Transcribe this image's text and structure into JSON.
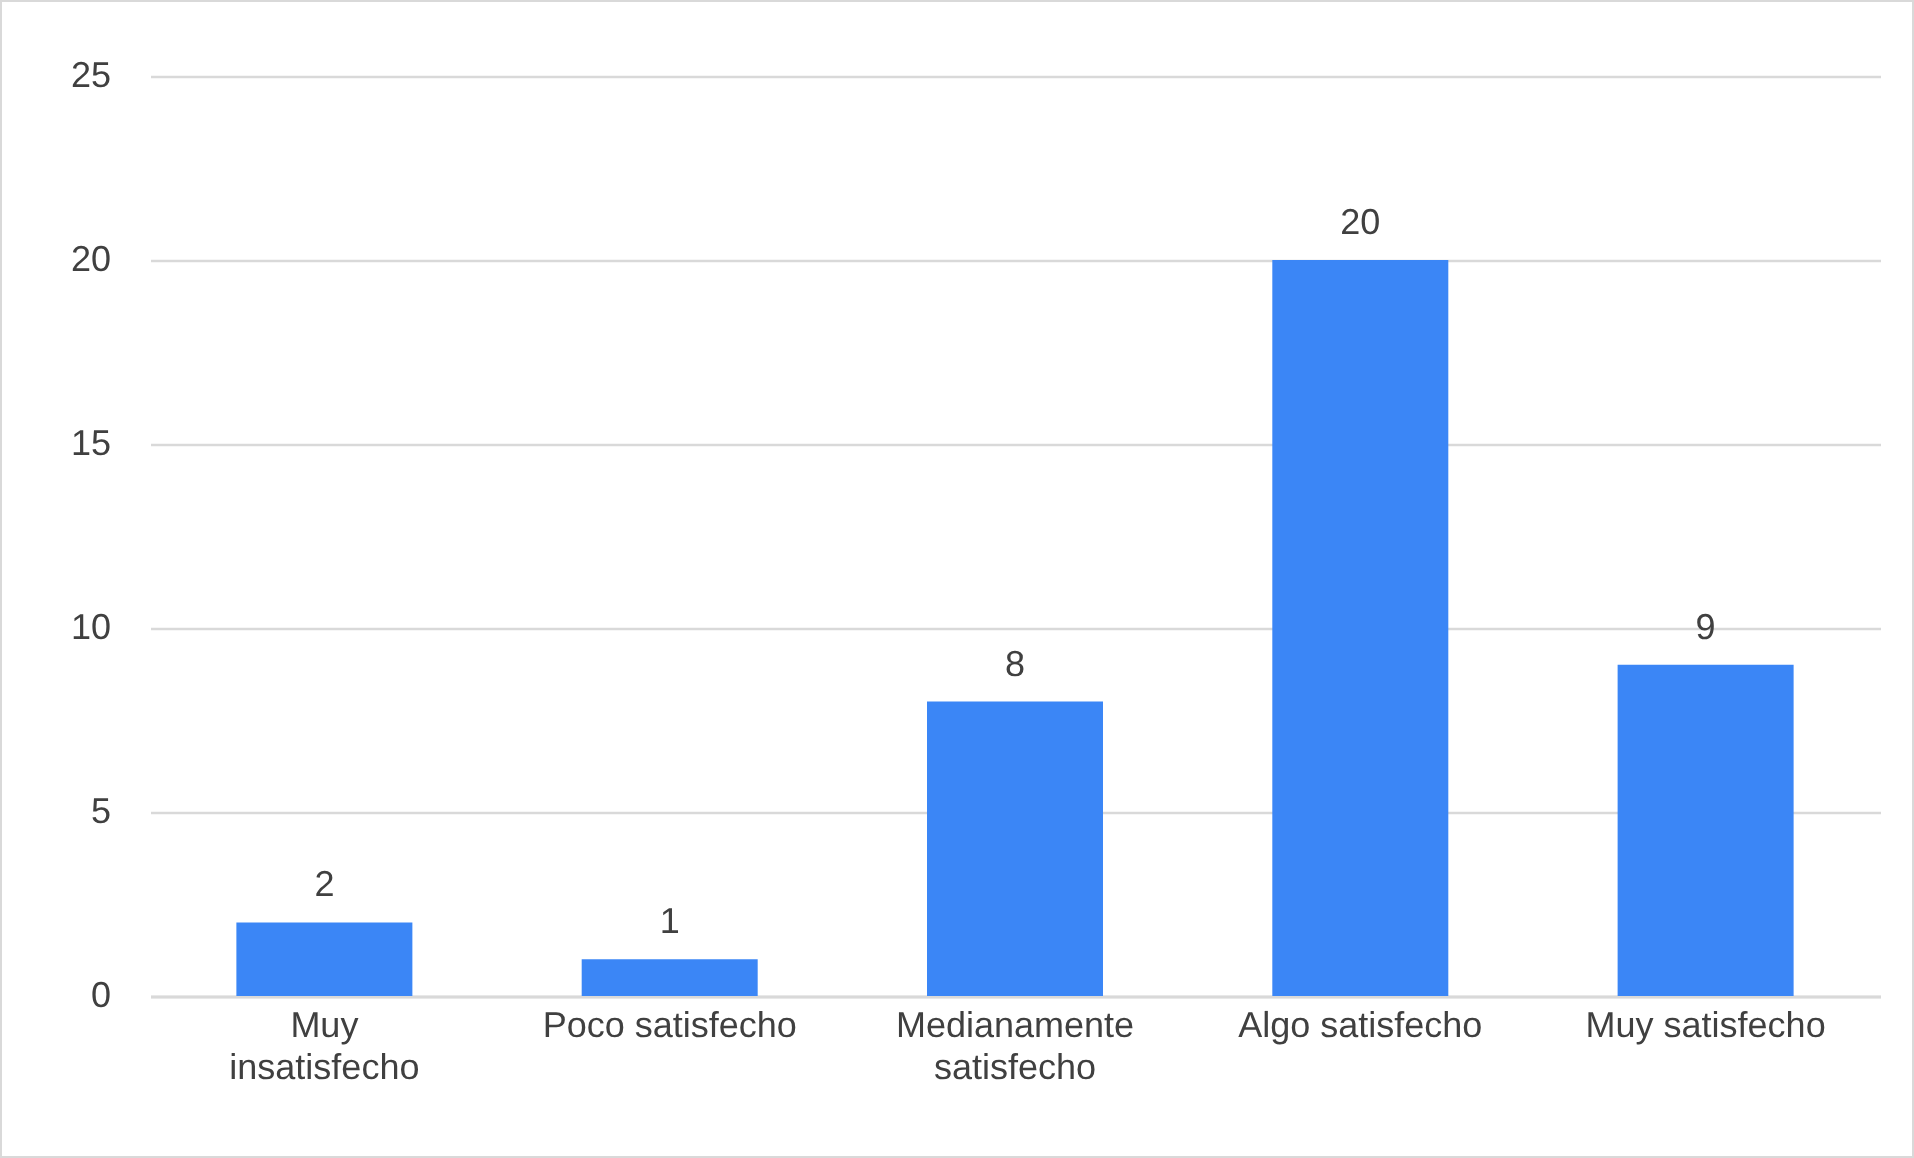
{
  "chart_data": {
    "type": "bar",
    "categories": [
      "Muy insatisfecho",
      "Poco satisfecho",
      "Medianamente satisfecho",
      "Algo satisfecho",
      "Muy satisfecho"
    ],
    "values": [
      2,
      1,
      8,
      20,
      9
    ],
    "color": "#3b86f6",
    "ylim": [
      0,
      25
    ],
    "yticks": [
      0,
      5,
      10,
      15,
      20,
      25
    ],
    "grid": "y",
    "data_labels": true
  }
}
